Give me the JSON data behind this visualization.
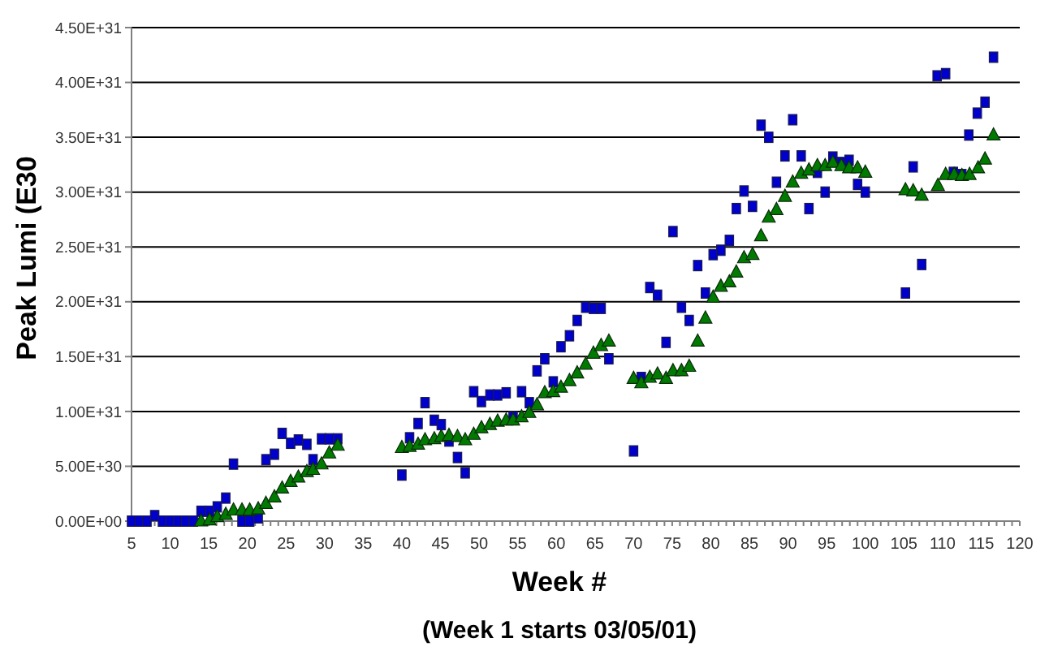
{
  "chart_data": {
    "type": "scatter",
    "xlabel": "Week  #",
    "ylabel": "Peak Lumi (E30",
    "annotations": [
      "(Week 1 starts 03/05/01)"
    ],
    "xlim": [
      5,
      120
    ],
    "xticks": [
      5,
      10,
      15,
      20,
      25,
      30,
      35,
      40,
      45,
      50,
      55,
      60,
      65,
      70,
      75,
      80,
      85,
      90,
      95,
      100,
      105,
      110,
      115,
      120
    ],
    "ylim": [
      0,
      4.5e+31
    ],
    "yticks": [
      {
        "value": 0,
        "label": "0.00E+00"
      },
      {
        "value": 5e+30,
        "label": "5.00E+30"
      },
      {
        "value": 1e+31,
        "label": "1.00E+31"
      },
      {
        "value": 1.5e+31,
        "label": "1.50E+31"
      },
      {
        "value": 2e+31,
        "label": "2.00E+31"
      },
      {
        "value": 2.5e+31,
        "label": "2.50E+31"
      },
      {
        "value": 3e+31,
        "label": "3.00E+31"
      },
      {
        "value": 3.5e+31,
        "label": "3.50E+31"
      },
      {
        "value": 4e+31,
        "label": "4.00E+31"
      },
      {
        "value": 4.5e+31,
        "label": "4.50E+31"
      }
    ],
    "grid": "y",
    "series": [
      {
        "color": "#0000cc",
        "marker": "square",
        "x": [
          5,
          6,
          7,
          8,
          9,
          10,
          11,
          12,
          13,
          14.0,
          15.1,
          16.1,
          17.2,
          18.2,
          19.3,
          20.3,
          21.4,
          22.4,
          23.5,
          24.5,
          25.6,
          26.6,
          27.7,
          28.5,
          29.6,
          30.6,
          31.7,
          40,
          41,
          42.1,
          43,
          44.2,
          45.1,
          46.1,
          47.2,
          48.2,
          49.3,
          50.3,
          51.4,
          52.4,
          53.5,
          54.4,
          55.5,
          56.5,
          57.5,
          58.5,
          59.6,
          60.6,
          61.7,
          62.7,
          63.8,
          64.8,
          65.8,
          66.8,
          70.0,
          71.0,
          72.1,
          73.1,
          74.2,
          75.1,
          76.2,
          77.2,
          78.3,
          79.3,
          80.3,
          81.3,
          82.4,
          83.3,
          84.3,
          85.4,
          86.5,
          87.5,
          88.5,
          89.6,
          90.6,
          91.7,
          92.7,
          93.8,
          94.8,
          95.8,
          96.9,
          97.9,
          99.0,
          100.0,
          105.2,
          106.2,
          107.3,
          109.3,
          110.4,
          111.4,
          112.5,
          113.4,
          114.5,
          115.5,
          116.6
        ],
        "values": [
          0,
          0,
          0,
          5e+29,
          0,
          0,
          0,
          0,
          0,
          9e+29,
          9e+29,
          1.3e+30,
          2.1e+30,
          5.2e+30,
          0,
          0,
          3e+29,
          5.6e+30,
          6.1e+30,
          8e+30,
          7.1e+30,
          7.4e+30,
          7e+30,
          5.6e+30,
          7.5e+30,
          7.5e+30,
          7.5e+30,
          4.2e+30,
          7.6e+30,
          8.9e+30,
          1.08e+31,
          9.2e+30,
          8.8e+30,
          7.3e+30,
          5.8e+30,
          4.4e+30,
          1.18e+31,
          1.09e+31,
          1.15e+31,
          1.15e+31,
          1.17e+31,
          9.5e+30,
          1.18e+31,
          1.08e+31,
          1.37e+31,
          1.48e+31,
          1.27e+31,
          1.59e+31,
          1.69e+31,
          1.83e+31,
          1.95e+31,
          1.94e+31,
          1.94e+31,
          1.48e+31,
          6.4e+30,
          1.31e+31,
          2.13e+31,
          2.06e+31,
          1.63e+31,
          2.64e+31,
          1.95e+31,
          1.83e+31,
          2.33e+31,
          2.08e+31,
          2.43e+31,
          2.47e+31,
          2.56e+31,
          2.85e+31,
          3.01e+31,
          2.87e+31,
          3.61e+31,
          3.5e+31,
          3.09e+31,
          3.33e+31,
          3.66e+31,
          3.33e+31,
          2.85e+31,
          3.18e+31,
          3e+31,
          3.32e+31,
          3.27e+31,
          3.29e+31,
          3.07e+31,
          3e+31,
          2.08e+31,
          3.23e+31,
          2.34e+31,
          4.06e+31,
          4.08e+31,
          3.18e+31,
          3.16e+31,
          3.52e+31,
          3.72e+31,
          3.82e+31,
          4.23e+31
        ]
      },
      {
        "color": "#007a00",
        "marker": "triangle",
        "x": [
          14.0,
          15.1,
          16.1,
          17.2,
          18.2,
          19.3,
          20.3,
          21.4,
          22.4,
          23.5,
          24.5,
          25.6,
          26.6,
          27.7,
          28.5,
          29.6,
          30.6,
          31.7,
          40,
          41,
          42.1,
          43,
          44.2,
          45.1,
          46.1,
          47.2,
          48.2,
          49.3,
          50.3,
          51.4,
          52.4,
          53.5,
          54.4,
          55.5,
          56.5,
          57.5,
          58.5,
          59.6,
          60.6,
          61.7,
          62.7,
          63.8,
          64.8,
          65.8,
          66.8,
          70.0,
          71.0,
          72.1,
          73.1,
          74.2,
          75.1,
          76.2,
          77.2,
          78.3,
          79.3,
          80.3,
          81.3,
          82.4,
          83.3,
          84.3,
          85.4,
          86.5,
          87.5,
          88.5,
          89.6,
          90.6,
          91.7,
          92.7,
          93.8,
          94.8,
          95.8,
          96.9,
          97.9,
          99.0,
          100.0,
          105.2,
          106.2,
          107.3,
          109.4,
          110.4,
          111.5,
          112.5,
          113.5,
          114.6,
          115.5,
          116.6
        ],
        "values": [
          0,
          1e+29,
          4e+29,
          6e+29,
          1e+30,
          1e+30,
          1e+30,
          1.1e+30,
          1.6e+30,
          2.2e+30,
          3e+30,
          3.6e+30,
          4e+30,
          4.5e+30,
          4.7e+30,
          5.2e+30,
          6.2e+30,
          6.9e+30,
          6.7e+30,
          6.8e+30,
          7e+30,
          7.4e+30,
          7.5e+30,
          7.7e+30,
          7.8e+30,
          7.7e+30,
          7.4e+30,
          7.9e+30,
          8.5e+30,
          8.8e+30,
          9.1e+30,
          9.2e+30,
          9.2e+30,
          9.5e+30,
          9.9e+30,
          1.06e+31,
          1.17e+31,
          1.18e+31,
          1.22e+31,
          1.28e+31,
          1.35e+31,
          1.43e+31,
          1.53e+31,
          1.6e+31,
          1.64e+31,
          1.3e+31,
          1.26e+31,
          1.31e+31,
          1.34e+31,
          1.3e+31,
          1.37e+31,
          1.37e+31,
          1.41e+31,
          1.64e+31,
          1.85e+31,
          2.04e+31,
          2.14e+31,
          2.18e+31,
          2.27e+31,
          2.4e+31,
          2.43e+31,
          2.6e+31,
          2.77e+31,
          2.84e+31,
          2.96e+31,
          3.09e+31,
          3.17e+31,
          3.2e+31,
          3.24e+31,
          3.24e+31,
          3.27e+31,
          3.24e+31,
          3.22e+31,
          3.22e+31,
          3.18e+31,
          3.02e+31,
          3.01e+31,
          2.97e+31,
          3.06e+31,
          3.16e+31,
          3.16e+31,
          3.15e+31,
          3.16e+31,
          3.22e+31,
          3.3e+31,
          3.52e+31
        ]
      }
    ]
  }
}
